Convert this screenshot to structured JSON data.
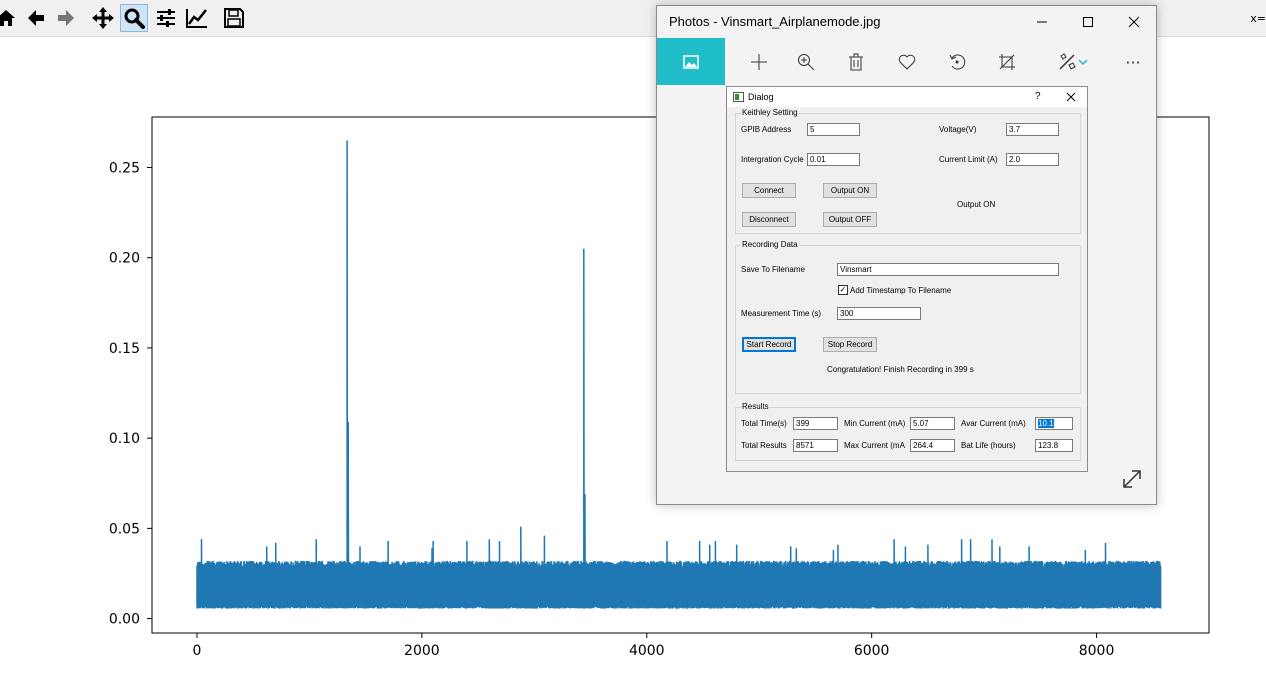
{
  "mpl_toolbar": {
    "buttons": [
      {
        "name": "home-icon"
      },
      {
        "name": "back-icon"
      },
      {
        "name": "forward-icon"
      },
      {
        "name": "pan-icon"
      },
      {
        "name": "zoom-icon"
      },
      {
        "name": "subplots-icon"
      },
      {
        "name": "customize-icon"
      },
      {
        "name": "save-icon"
      }
    ],
    "active": "zoom-icon",
    "coord_readout": "x="
  },
  "chart_data": {
    "type": "line",
    "title": "",
    "xlabel": "",
    "ylabel": "",
    "xlim": [
      -400,
      9000
    ],
    "ylim": [
      -0.008,
      0.278
    ],
    "xticks": [
      0,
      2000,
      4000,
      6000,
      8000
    ],
    "xtick_labels": [
      "0",
      "2000",
      "4000",
      "6000",
      "8000"
    ],
    "yticks": [
      0.0,
      0.05,
      0.1,
      0.15,
      0.2,
      0.25
    ],
    "ytick_labels": [
      "0.00",
      "0.05",
      "0.10",
      "0.15",
      "0.20",
      "0.25"
    ],
    "grid": false,
    "line_color": "#1f77b4",
    "series": [
      {
        "baseline_low": 0.007,
        "baseline_high": 0.032,
        "n_points": 8571,
        "spikes": [
          {
            "x": 40,
            "y": 0.044
          },
          {
            "x": 620,
            "y": 0.04
          },
          {
            "x": 700,
            "y": 0.042
          },
          {
            "x": 1060,
            "y": 0.044
          },
          {
            "x": 1335,
            "y": 0.265
          },
          {
            "x": 1345,
            "y": 0.109
          },
          {
            "x": 1450,
            "y": 0.04
          },
          {
            "x": 1700,
            "y": 0.043
          },
          {
            "x": 2090,
            "y": 0.039
          },
          {
            "x": 2100,
            "y": 0.043
          },
          {
            "x": 2400,
            "y": 0.043
          },
          {
            "x": 2600,
            "y": 0.044
          },
          {
            "x": 2690,
            "y": 0.043
          },
          {
            "x": 2880,
            "y": 0.051
          },
          {
            "x": 3090,
            "y": 0.046
          },
          {
            "x": 3440,
            "y": 0.205
          },
          {
            "x": 3450,
            "y": 0.069
          },
          {
            "x": 4180,
            "y": 0.043
          },
          {
            "x": 4470,
            "y": 0.043
          },
          {
            "x": 4560,
            "y": 0.041
          },
          {
            "x": 4610,
            "y": 0.043
          },
          {
            "x": 4800,
            "y": 0.041
          },
          {
            "x": 5280,
            "y": 0.04
          },
          {
            "x": 5330,
            "y": 0.039
          },
          {
            "x": 5660,
            "y": 0.038
          },
          {
            "x": 5700,
            "y": 0.041
          },
          {
            "x": 6200,
            "y": 0.044
          },
          {
            "x": 6300,
            "y": 0.04
          },
          {
            "x": 6500,
            "y": 0.041
          },
          {
            "x": 6800,
            "y": 0.044
          },
          {
            "x": 6880,
            "y": 0.044
          },
          {
            "x": 7070,
            "y": 0.044
          },
          {
            "x": 7140,
            "y": 0.04
          },
          {
            "x": 7400,
            "y": 0.04
          },
          {
            "x": 7900,
            "y": 0.038
          },
          {
            "x": 8080,
            "y": 0.042
          }
        ],
        "x_end": 8571
      }
    ]
  },
  "photos": {
    "title": "Photos - Vinsmart_Airplanemode.jpg",
    "window_buttons": [
      "minimize-icon",
      "maximize-icon",
      "close-icon"
    ],
    "toolbar_icons": [
      "image-icon",
      "add-icon",
      "zoom-in-icon",
      "delete-icon",
      "heart-icon",
      "rotate-icon",
      "crop-icon",
      "edit-icon",
      "chevron-down-icon",
      "more-icon"
    ],
    "accent": "#1fbdc8",
    "more_glyph": "···"
  },
  "dialog": {
    "title": "Dialog",
    "help": "?",
    "keithley": {
      "group_title": "Keithley Setting",
      "gpib_label": "GPIB Address",
      "gpib_value": "5",
      "voltage_label": "Voltage(V)",
      "voltage_value": "3.7",
      "cycle_label": "Intergration Cycle",
      "cycle_value": "0.01",
      "limit_label": "Current Limit (A)",
      "limit_value": "2.0",
      "connect": "Connect",
      "disconnect": "Disconnect",
      "output_on": "Output ON",
      "output_off": "Output OFF",
      "status": "Output ON"
    },
    "recording": {
      "group_title": "Recording Data",
      "save_label": "Save To Filename",
      "save_value": "Vinsmart",
      "timestamp_label": "Add  Timestamp To Filename",
      "timestamp_checked": true,
      "time_label": "Measurement Time (s)",
      "time_value": "300",
      "start": "Start Record",
      "stop": "Stop Record",
      "message": "Congratulation! Finish Recording in 399 s"
    },
    "results": {
      "group_title": "Results",
      "total_time_label": "Total Time(s)",
      "total_time": "399",
      "min_label": "Min Current (mA)",
      "min": "5.07",
      "avg_label": "Avar Current (mA)",
      "avg": "10.1",
      "total_results_label": "Total Results",
      "total_results": "8571",
      "max_label": "Max Current (mA",
      "max": "264.4",
      "bat_label": "Bat Life (hours)",
      "bat": "123.8"
    }
  }
}
